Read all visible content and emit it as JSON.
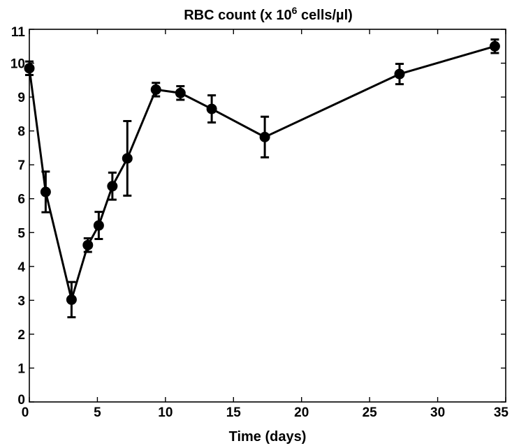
{
  "chart_data": {
    "type": "line",
    "title": "RBC count (x 10^6 cells/µl)",
    "title_parts": {
      "prefix": "RBC count (x 10",
      "sup": "6",
      "suffix": " cells/µl)"
    },
    "xlabel": "Time (days)",
    "ylabel": "",
    "xlim": [
      0,
      35
    ],
    "ylim": [
      0,
      11
    ],
    "xticks": [
      0,
      5,
      10,
      15,
      20,
      25,
      30,
      35
    ],
    "yticks": [
      0,
      1,
      2,
      3,
      4,
      5,
      6,
      7,
      8,
      9,
      10,
      11
    ],
    "grid": false,
    "series": [
      {
        "color": "#000000",
        "marker": "circle",
        "x": [
          0,
          1.2,
          3.1,
          4.3,
          5.1,
          6.1,
          7.2,
          9.3,
          11.1,
          13.4,
          17.3,
          27.2,
          34.2
        ],
        "y": [
          9.85,
          6.2,
          3.02,
          4.63,
          5.21,
          6.37,
          7.19,
          9.22,
          9.12,
          8.65,
          7.82,
          9.68,
          10.5
        ],
        "error": [
          0.2,
          0.6,
          0.52,
          0.2,
          0.4,
          0.4,
          1.1,
          0.2,
          0.2,
          0.4,
          0.6,
          0.3,
          0.2
        ]
      }
    ]
  }
}
